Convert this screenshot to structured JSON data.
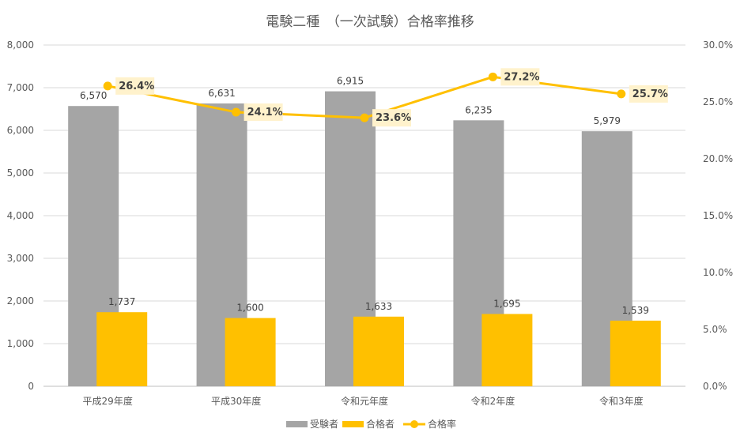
{
  "chart_data": {
    "type": "bar",
    "title": "電験二種　（一次試験）合格率推移",
    "categories": [
      "平成29年度",
      "平成30年度",
      "令和元年度",
      "令和2年度",
      "令和3年度"
    ],
    "series": [
      {
        "name": "受験者",
        "type": "bar",
        "axis": "left",
        "color": "#a5a5a5",
        "values": [
          6570,
          6631,
          6915,
          6235,
          5979
        ],
        "labels": [
          "6,570",
          "6,631",
          "6,915",
          "6,235",
          "5,979"
        ]
      },
      {
        "name": "合格者",
        "type": "bar",
        "axis": "left",
        "color": "#ffc000",
        "values": [
          1737,
          1600,
          1633,
          1695,
          1539
        ],
        "labels": [
          "1,737",
          "1,600",
          "1,633",
          "1,695",
          "1,539"
        ]
      },
      {
        "name": "合格率",
        "type": "line",
        "axis": "right",
        "color": "#ffc000",
        "values": [
          26.4,
          24.1,
          23.6,
          27.2,
          25.7
        ],
        "labels": [
          "26.4%",
          "24.1%",
          "23.6%",
          "27.2%",
          "25.7%"
        ]
      }
    ],
    "y_left": {
      "min": 0,
      "max": 8000,
      "ticks": [
        "0",
        "1,000",
        "2,000",
        "3,000",
        "4,000",
        "5,000",
        "6,000",
        "7,000",
        "8,000"
      ]
    },
    "y_right": {
      "min": 0,
      "max": 30,
      "ticks": [
        "0.0%",
        "5.0%",
        "10.0%",
        "15.0%",
        "20.0%",
        "25.0%",
        "30.0%"
      ]
    },
    "grid": true,
    "legend_position": "bottom",
    "label_bg": "#fff2cc"
  }
}
